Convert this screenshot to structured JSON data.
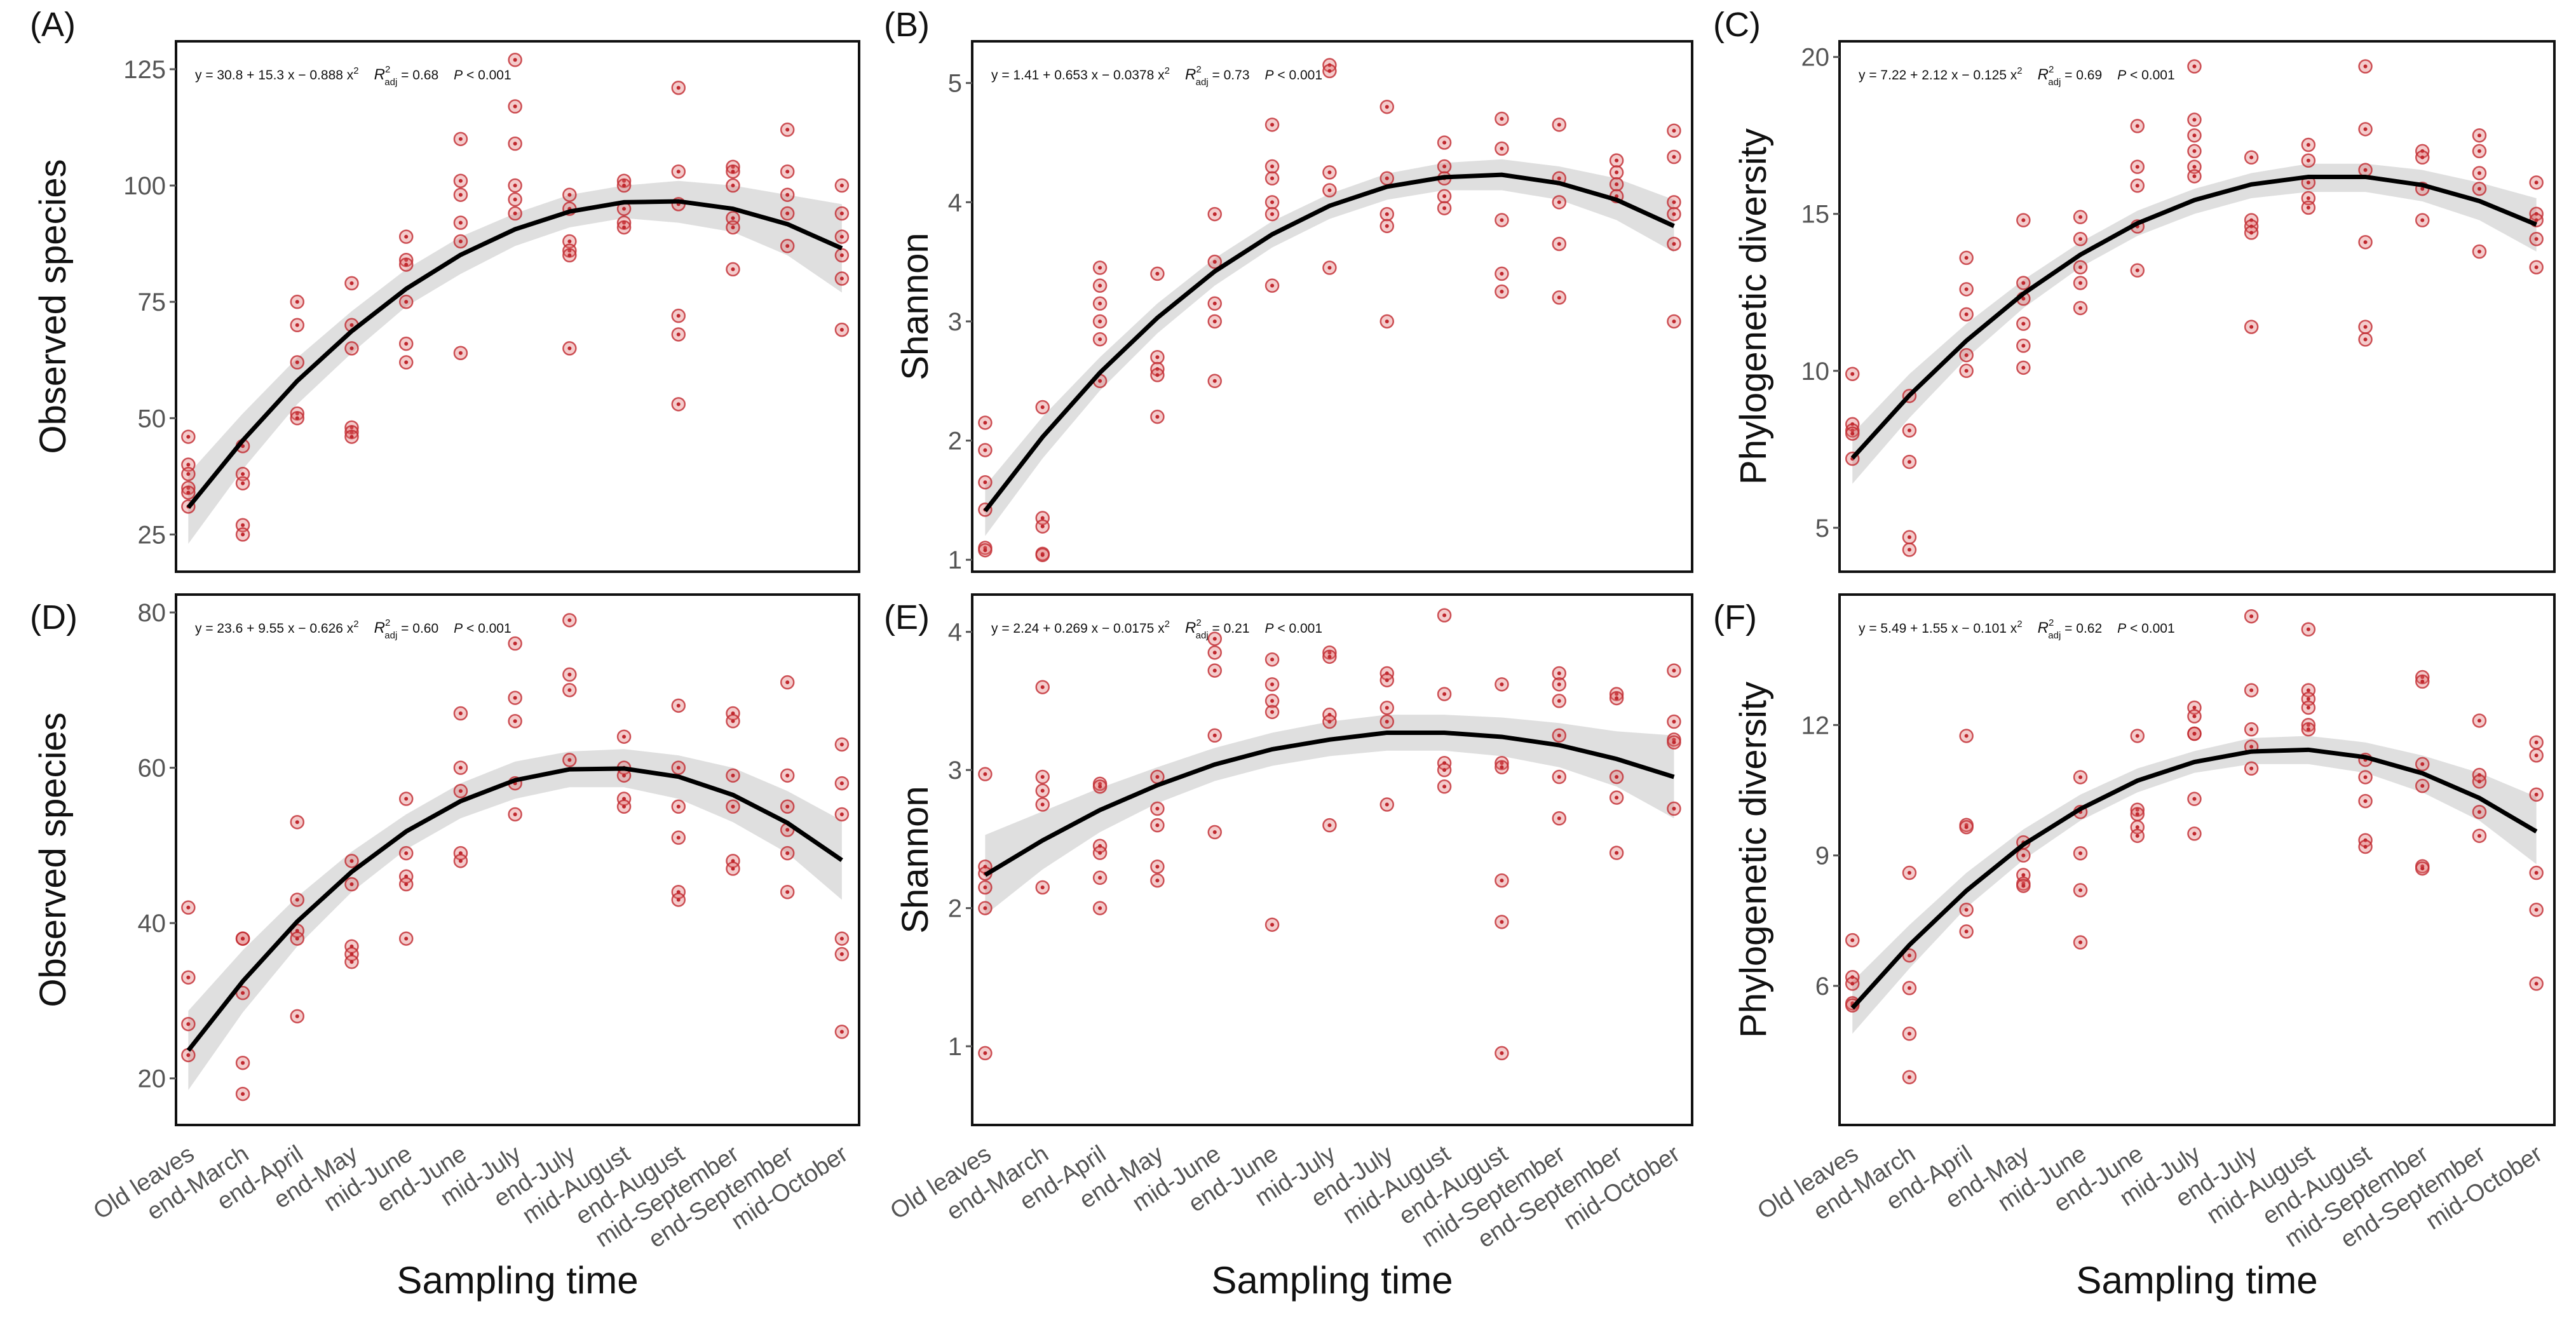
{
  "chart_data": [
    {
      "type": "scatter",
      "panel": "(A)",
      "ylabel": "Observed species",
      "equation": [
        "y = 30.8 + 15.3 x − 0.888 x",
        "2"
      ],
      "r2": [
        "R",
        "2",
        "adj",
        " = 0.68"
      ],
      "p": [
        "P",
        " < 0.001"
      ],
      "ylim": [
        17,
        131
      ],
      "yticks": [
        25,
        50,
        75,
        100,
        125
      ],
      "color": "#c0282e",
      "values": [
        [
          46,
          40,
          38,
          35,
          34,
          31
        ],
        [
          44,
          38,
          36,
          27,
          25
        ],
        [
          75,
          70,
          62,
          51,
          50
        ],
        [
          79,
          70,
          65,
          48,
          47,
          46
        ],
        [
          89,
          84,
          83,
          75,
          66,
          62
        ],
        [
          110,
          101,
          98,
          92,
          88,
          64
        ],
        [
          127,
          117,
          109,
          100,
          97,
          94
        ],
        [
          98,
          95,
          88,
          86,
          85,
          65
        ],
        [
          101,
          100,
          95,
          92,
          91
        ],
        [
          121,
          103,
          96,
          72,
          68,
          53
        ],
        [
          104,
          103,
          100,
          93,
          91,
          82
        ],
        [
          112,
          103,
          98,
          94,
          87
        ],
        [
          100,
          94,
          89,
          85,
          80,
          69
        ]
      ],
      "fit": [
        30.8,
        45.2,
        58.0,
        68.7,
        77.8,
        85.1,
        90.6,
        94.4,
        96.4,
        96.6,
        95.0,
        91.7,
        86.5
      ],
      "ci_lower": [
        23,
        39,
        53,
        64,
        74,
        81,
        87,
        91,
        93,
        92,
        90,
        85,
        77
      ],
      "ci_upper": [
        38,
        51,
        63,
        73,
        82,
        89,
        94,
        98,
        100,
        101,
        100,
        98,
        96
      ]
    },
    {
      "type": "scatter",
      "panel": "(B)",
      "ylabel": "Shannon",
      "equation": [
        "y = 1.41 + 0.653 x − 0.0378 x",
        "2"
      ],
      "r2": [
        "R",
        "2",
        "adj",
        " = 0.73"
      ],
      "p": [
        "P",
        " < 0.001"
      ],
      "ylim": [
        0.9,
        5.35
      ],
      "yticks": [
        1,
        2,
        3,
        4,
        5
      ],
      "color": "#c0282e",
      "values": [
        [
          2.15,
          1.92,
          1.65,
          1.42,
          1.1,
          1.08
        ],
        [
          2.28,
          1.35,
          1.28,
          1.05,
          1.04
        ],
        [
          3.45,
          3.3,
          3.15,
          3.0,
          2.85,
          2.5
        ],
        [
          3.4,
          2.7,
          2.6,
          2.55,
          2.2
        ],
        [
          3.9,
          3.5,
          3.15,
          3.0,
          2.5
        ],
        [
          4.65,
          4.3,
          4.2,
          4.0,
          3.9,
          3.3
        ],
        [
          5.15,
          5.1,
          4.25,
          4.1,
          3.45
        ],
        [
          4.8,
          4.2,
          3.9,
          3.8,
          3.0
        ],
        [
          4.5,
          4.3,
          4.2,
          4.05,
          3.95
        ],
        [
          4.7,
          4.45,
          3.85,
          3.4,
          3.25
        ],
        [
          4.65,
          4.2,
          4.0,
          3.65,
          3.2
        ],
        [
          4.35,
          4.25,
          4.15,
          4.05
        ],
        [
          4.6,
          4.38,
          4.0,
          3.9,
          3.65,
          3.0
        ]
      ],
      "fit": [
        1.41,
        2.03,
        2.57,
        3.03,
        3.42,
        3.73,
        3.97,
        4.13,
        4.21,
        4.23,
        4.16,
        4.02,
        3.8
      ],
      "ci_lower": [
        1.2,
        1.85,
        2.42,
        2.9,
        3.3,
        3.62,
        3.86,
        4.02,
        4.1,
        4.1,
        4.02,
        3.85,
        3.58
      ],
      "ci_upper": [
        1.62,
        2.2,
        2.7,
        3.15,
        3.53,
        3.84,
        4.07,
        4.24,
        4.33,
        4.36,
        4.3,
        4.2,
        4.02
      ]
    },
    {
      "type": "scatter",
      "panel": "(C)",
      "ylabel": "Phylogenetic diversity",
      "equation": [
        "y = 7.22 + 2.12 x − 0.125 x",
        "2"
      ],
      "r2": [
        "R",
        "2",
        "adj",
        " = 0.69"
      ],
      "p": [
        "P",
        " < 0.001"
      ],
      "ylim": [
        3.6,
        20.5
      ],
      "yticks": [
        5,
        10,
        15,
        20
      ],
      "color": "#c0282e",
      "values": [
        [
          9.9,
          8.3,
          8.1,
          8.0,
          7.2
        ],
        [
          9.2,
          8.1,
          7.1,
          4.7,
          4.3
        ],
        [
          13.6,
          12.6,
          11.8,
          10.5,
          10.0
        ],
        [
          14.8,
          12.8,
          12.3,
          11.5,
          10.8,
          10.1
        ],
        [
          14.9,
          14.2,
          13.3,
          12.8,
          12.0
        ],
        [
          17.8,
          16.5,
          15.9,
          14.6,
          13.2
        ],
        [
          19.7,
          18.0,
          17.5,
          17.0,
          16.5,
          16.2
        ],
        [
          16.8,
          14.8,
          14.6,
          14.4,
          11.4
        ],
        [
          17.2,
          16.7,
          16.0,
          15.5,
          15.2
        ],
        [
          19.7,
          17.7,
          16.4,
          14.1,
          11.4,
          11.0
        ],
        [
          17.0,
          16.8,
          15.8,
          14.8
        ],
        [
          17.5,
          17.0,
          16.3,
          15.8,
          13.8
        ],
        [
          16.0,
          15.0,
          14.8,
          14.2,
          13.3
        ]
      ],
      "fit": [
        7.22,
        9.22,
        10.96,
        12.46,
        13.7,
        14.7,
        15.44,
        15.94,
        16.18,
        16.18,
        15.92,
        15.41,
        14.66
      ],
      "ci_lower": [
        6.4,
        8.5,
        10.4,
        12.0,
        13.3,
        14.3,
        15.0,
        15.5,
        15.7,
        15.7,
        15.4,
        14.8,
        13.8
      ],
      "ci_upper": [
        8.0,
        9.9,
        11.5,
        12.9,
        14.1,
        15.1,
        15.8,
        16.3,
        16.6,
        16.6,
        16.4,
        16.0,
        15.5
      ]
    },
    {
      "type": "scatter",
      "panel": "(D)",
      "ylabel": "Observed species",
      "xlabel": "Sampling time",
      "categories": [
        "Old leaves",
        "end-March",
        "end-April",
        "end-May",
        "mid-June",
        "end-June",
        "mid-July",
        "end-July",
        "mid-August",
        "end-August",
        "mid-September",
        "end-September",
        "mid-October"
      ],
      "equation": [
        "y = 23.6 + 9.55 x − 0.626 x",
        "2"
      ],
      "r2": [
        "R",
        "2",
        "adj",
        " = 0.60"
      ],
      "p": [
        "P",
        " < 0.001"
      ],
      "ylim": [
        14,
        82.3
      ],
      "yticks": [
        20,
        40,
        60,
        80
      ],
      "color": "#c0282e",
      "values": [
        [
          42,
          33,
          27,
          23
        ],
        [
          38,
          38,
          31,
          22,
          18
        ],
        [
          53,
          43,
          39,
          38,
          28
        ],
        [
          48,
          45,
          37,
          36,
          35
        ],
        [
          56,
          49,
          46,
          45,
          38
        ],
        [
          67,
          60,
          57,
          49,
          48
        ],
        [
          76,
          69,
          66,
          58,
          54
        ],
        [
          79,
          72,
          70,
          61
        ],
        [
          64,
          60,
          59,
          56,
          55
        ],
        [
          68,
          60,
          55,
          51,
          44,
          43
        ],
        [
          67,
          66,
          59,
          55,
          48,
          47
        ],
        [
          71,
          59,
          55,
          52,
          49,
          44
        ],
        [
          63,
          58,
          54,
          38,
          36,
          26
        ]
      ],
      "fit": [
        23.6,
        32.5,
        40.2,
        46.6,
        51.8,
        55.7,
        58.4,
        59.8,
        59.9,
        58.85,
        56.5,
        52.9,
        48.1
      ],
      "ci_lower": [
        18.5,
        28.5,
        37,
        44,
        49.5,
        53.5,
        56,
        57.5,
        57.5,
        56,
        53,
        49,
        43
      ],
      "ci_upper": [
        28.7,
        36.5,
        43.4,
        49.2,
        54,
        58,
        60.8,
        62.1,
        62.4,
        61.6,
        60,
        57,
        53.2
      ]
    },
    {
      "type": "scatter",
      "panel": "(E)",
      "ylabel": "Shannon",
      "xlabel": "Sampling time",
      "categories": [
        "Old leaves",
        "end-March",
        "end-April",
        "end-May",
        "mid-June",
        "end-June",
        "mid-July",
        "end-July",
        "mid-August",
        "end-August",
        "mid-September",
        "end-September",
        "mid-October"
      ],
      "equation": [
        "y = 2.24 + 0.269 x − 0.0175 x",
        "2"
      ],
      "r2": [
        "R",
        "2",
        "adj",
        " = 0.21"
      ],
      "p": [
        "P",
        " < 0.001"
      ],
      "ylim": [
        0.43,
        4.27
      ],
      "yticks": [
        1,
        2,
        3,
        4
      ],
      "color": "#c0282e",
      "values": [
        [
          2.97,
          2.3,
          2.25,
          2.15,
          2.0,
          0.95
        ],
        [
          3.6,
          2.95,
          2.85,
          2.75,
          2.15
        ],
        [
          2.9,
          2.88,
          2.45,
          2.4,
          2.22,
          2.0
        ],
        [
          2.95,
          2.72,
          2.6,
          2.3,
          2.2
        ],
        [
          3.95,
          3.85,
          3.72,
          3.25,
          2.55
        ],
        [
          3.8,
          3.62,
          3.5,
          3.42,
          1.88
        ],
        [
          3.85,
          3.82,
          3.4,
          3.35,
          2.6
        ],
        [
          3.7,
          3.65,
          3.45,
          3.35,
          2.75
        ],
        [
          4.12,
          3.55,
          3.05,
          3.0,
          2.88
        ],
        [
          3.62,
          3.05,
          3.02,
          2.2,
          1.9,
          0.95
        ],
        [
          3.7,
          3.62,
          3.5,
          3.25,
          2.95,
          2.65
        ],
        [
          3.55,
          3.52,
          2.95,
          2.8,
          2.4
        ],
        [
          3.72,
          3.35,
          3.22,
          3.2,
          2.72
        ]
      ],
      "fit": [
        2.24,
        2.49,
        2.71,
        2.89,
        3.04,
        3.15,
        3.22,
        3.27,
        3.27,
        3.24,
        3.18,
        3.08,
        2.95
      ],
      "ci_lower": [
        1.95,
        2.28,
        2.55,
        2.76,
        2.92,
        3.03,
        3.1,
        3.14,
        3.14,
        3.1,
        3.02,
        2.88,
        2.65
      ],
      "ci_upper": [
        2.53,
        2.7,
        2.87,
        3.02,
        3.16,
        3.27,
        3.35,
        3.4,
        3.4,
        3.38,
        3.34,
        3.28,
        3.25
      ]
    },
    {
      "type": "scatter",
      "panel": "(F)",
      "ylabel": "Phylogenetic diversity",
      "xlabel": "Sampling time",
      "categories": [
        "Old leaves",
        "end-March",
        "end-April",
        "end-May",
        "mid-June",
        "end-June",
        "mid-July",
        "end-July",
        "mid-August",
        "end-August",
        "mid-September",
        "end-September",
        "mid-October"
      ],
      "equation": [
        "y = 5.49 + 1.55 x − 0.101 x",
        "2"
      ],
      "r2": [
        "R",
        "2",
        "adj",
        " = 0.62"
      ],
      "p": [
        "P",
        " < 0.001"
      ],
      "ylim": [
        2.8,
        15
      ],
      "yticks": [
        6,
        9,
        12
      ],
      "color": "#c0282e",
      "values": [
        [
          7.05,
          6.2,
          6.05,
          5.6,
          5.55
        ],
        [
          8.6,
          6.7,
          5.95,
          4.9,
          3.9
        ],
        [
          11.75,
          9.7,
          9.65,
          7.75,
          7.25
        ],
        [
          9.3,
          9.0,
          8.55,
          8.35,
          8.3
        ],
        [
          10.8,
          10.0,
          9.05,
          8.2,
          7.0
        ],
        [
          11.75,
          10.05,
          9.95,
          9.65,
          9.45
        ],
        [
          12.4,
          12.2,
          11.8,
          11.8,
          10.3,
          9.5
        ],
        [
          14.5,
          12.8,
          11.9,
          11.5,
          11.0
        ],
        [
          14.2,
          12.8,
          12.6,
          12.4,
          12.0,
          11.9
        ],
        [
          11.2,
          10.8,
          10.25,
          9.35,
          9.2
        ],
        [
          13.1,
          13.0,
          11.1,
          10.6,
          8.75,
          8.7
        ],
        [
          12.1,
          10.85,
          10.7,
          10.0,
          9.45
        ],
        [
          11.6,
          11.3,
          10.4,
          8.6,
          7.75,
          6.05
        ]
      ],
      "fit": [
        5.49,
        6.94,
        8.19,
        9.25,
        10.07,
        10.72,
        11.15,
        11.39,
        11.43,
        11.26,
        10.89,
        10.32,
        9.55
      ],
      "ci_lower": [
        4.9,
        6.4,
        7.8,
        8.9,
        9.8,
        10.45,
        10.9,
        11.1,
        11.1,
        10.9,
        10.45,
        9.8,
        8.8
      ],
      "ci_upper": [
        6.1,
        7.4,
        8.6,
        9.6,
        10.4,
        11.0,
        11.4,
        11.7,
        11.75,
        11.6,
        11.3,
        10.9,
        10.35
      ]
    }
  ]
}
